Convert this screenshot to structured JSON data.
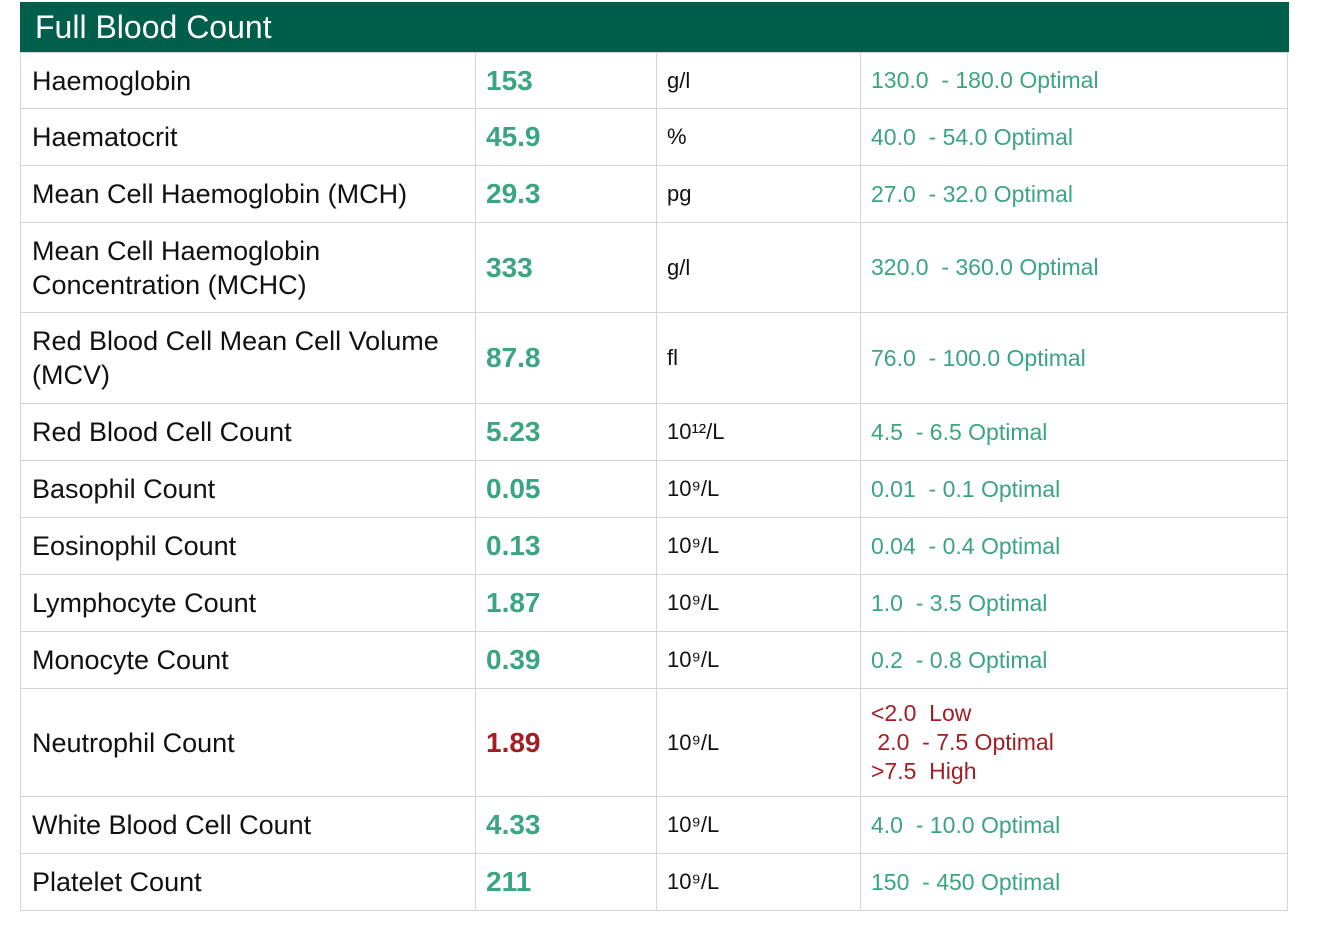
{
  "title": "Full Blood Count",
  "colors": {
    "header_bg": "#005f4b",
    "optimal": "#3aa57f",
    "out_of_range": "#a41d23"
  },
  "rows": [
    {
      "name": "Haemoglobin",
      "value": "153",
      "unit": "g/l",
      "status": "optimal",
      "ranges": [
        "130.0  - 180.0 Optimal"
      ]
    },
    {
      "name": "Haematocrit",
      "value": "45.9",
      "unit": "%",
      "status": "optimal",
      "ranges": [
        "40.0  - 54.0 Optimal"
      ]
    },
    {
      "name": "Mean Cell Haemoglobin (MCH)",
      "value": "29.3",
      "unit": "pg",
      "status": "optimal",
      "ranges": [
        "27.0  - 32.0 Optimal"
      ]
    },
    {
      "name": "Mean Cell Haemoglobin Concentration (MCHC)",
      "value": "333",
      "unit": "g/l",
      "status": "optimal",
      "ranges": [
        "320.0  - 360.0 Optimal"
      ]
    },
    {
      "name": "Red Blood Cell Mean Cell Volume (MCV)",
      "value": "87.8",
      "unit": "fl",
      "status": "optimal",
      "ranges": [
        "76.0  - 100.0 Optimal"
      ]
    },
    {
      "name": "Red Blood Cell Count",
      "value": "5.23",
      "unit": "10¹²/L",
      "status": "optimal",
      "ranges": [
        "4.5  - 6.5 Optimal"
      ]
    },
    {
      "name": "Basophil Count",
      "value": "0.05",
      "unit": "10⁹/L",
      "status": "optimal",
      "ranges": [
        "0.01  - 0.1 Optimal"
      ]
    },
    {
      "name": "Eosinophil Count",
      "value": "0.13",
      "unit": "10⁹/L",
      "status": "optimal",
      "ranges": [
        "0.04  - 0.4 Optimal"
      ]
    },
    {
      "name": "Lymphocyte Count",
      "value": "1.87",
      "unit": "10⁹/L",
      "status": "optimal",
      "ranges": [
        "1.0  - 3.5 Optimal"
      ]
    },
    {
      "name": "Monocyte Count",
      "value": "0.39",
      "unit": "10⁹/L",
      "status": "optimal",
      "ranges": [
        "0.2  - 0.8 Optimal"
      ]
    },
    {
      "name": "Neutrophil Count",
      "value": "1.89",
      "unit": "10⁹/L",
      "status": "out_of_range",
      "ranges": [
        "<2.0  Low",
        " 2.0  - 7.5 Optimal",
        ">7.5  High"
      ]
    },
    {
      "name": "White Blood Cell Count",
      "value": "4.33",
      "unit": "10⁹/L",
      "status": "optimal",
      "ranges": [
        "4.0  - 10.0 Optimal"
      ]
    },
    {
      "name": "Platelet Count",
      "value": "211",
      "unit": "10⁹/L",
      "status": "optimal",
      "ranges": [
        "150  - 450 Optimal"
      ]
    }
  ]
}
